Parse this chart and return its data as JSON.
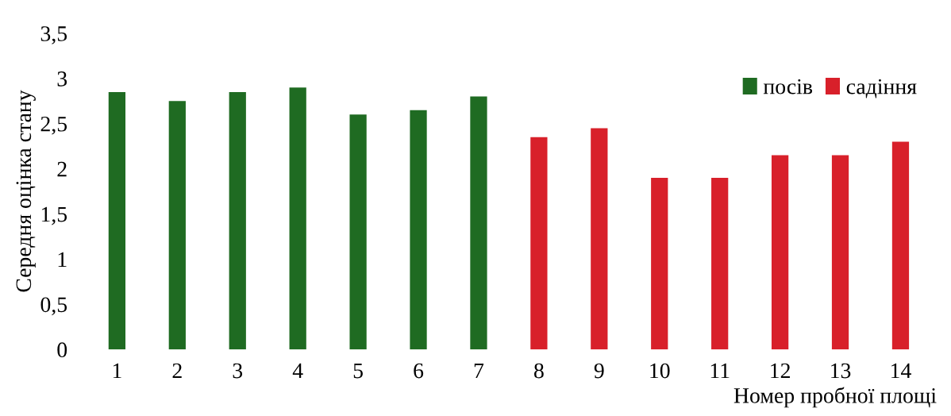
{
  "chart_data": {
    "type": "bar",
    "xlabel": "Номер пробної площі",
    "ylabel": "Середня оцінка стану",
    "categories": [
      "1",
      "2",
      "3",
      "4",
      "5",
      "6",
      "7",
      "8",
      "9",
      "10",
      "11",
      "12",
      "13",
      "14"
    ],
    "series": [
      {
        "name": "посів",
        "color": "#1f6b22",
        "values": [
          2.85,
          2.75,
          2.85,
          2.9,
          2.6,
          2.65,
          2.8,
          null,
          null,
          null,
          null,
          null,
          null,
          null
        ]
      },
      {
        "name": "садіння",
        "color": "#d8202a",
        "values": [
          null,
          null,
          null,
          null,
          null,
          null,
          null,
          2.35,
          2.45,
          1.9,
          1.9,
          2.15,
          2.15,
          2.3
        ]
      }
    ],
    "ylim": [
      0,
      3.5
    ],
    "yticks": [
      0,
      {
        "value": 0.5,
        "label": "0,5"
      },
      1,
      {
        "value": 1.5,
        "label": "1,5"
      },
      2,
      {
        "value": 2.5,
        "label": "2,5"
      },
      3,
      {
        "value": 3.5,
        "label": "3,5"
      }
    ],
    "grid": false,
    "legend": "top right"
  }
}
